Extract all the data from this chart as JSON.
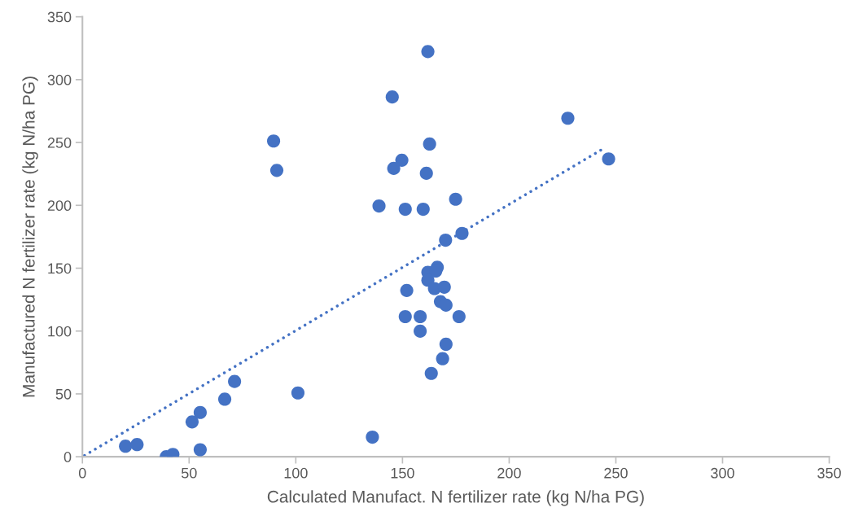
{
  "chart_data": {
    "type": "scatter",
    "xlabel": "Calculated Manufact. N fertilizer rate (kg N/ha PG)",
    "ylabel": "Manufactured N fertilizer rate (kg N/ha PG)",
    "xlim": [
      0,
      350
    ],
    "ylim": [
      0,
      350
    ],
    "xticks": [
      0,
      50,
      100,
      150,
      200,
      250,
      300,
      350
    ],
    "yticks": [
      0,
      50,
      100,
      150,
      200,
      250,
      300,
      350
    ],
    "grid": false,
    "legend": false,
    "series": [
      {
        "color": "#4472c4",
        "marker": "circle",
        "x": [
          20.2,
          25.6,
          39.3,
          42.4,
          55.2,
          51.4,
          55.2,
          66.7,
          71.3,
          101.0,
          89.6,
          91.1,
          135.9,
          161.9,
          145.2,
          162.7,
          149.7,
          145.9,
          161.2,
          174.9,
          139.0,
          151.3,
          159.7,
          177.9,
          170.2,
          166.3,
          161.9,
          165.6,
          161.9,
          165.0,
          169.6,
          152.0,
          167.8,
          170.4,
          151.3,
          158.3,
          176.5,
          158.3,
          170.4,
          168.8,
          163.5,
          227.5,
          246.6
        ],
        "values": [
          8.4,
          9.7,
          0,
          1.9,
          5.6,
          27.7,
          35.2,
          45.8,
          59.9,
          50.8,
          251.2,
          227.8,
          15.6,
          322.3,
          286.2,
          248.8,
          235.9,
          229.4,
          225.5,
          204.9,
          199.5,
          196.9,
          196.9,
          177.7,
          172.3,
          150.7,
          146.8,
          147.7,
          140.5,
          133.8,
          134.9,
          132.3,
          123.4,
          120.6,
          111.5,
          111.5,
          111.5,
          99.9,
          89.5,
          78.0,
          66.3,
          269.3,
          236.9
        ]
      },
      {
        "type": "line",
        "color": "#4472c4",
        "line_style": "dotted",
        "x": [
          1,
          245
        ],
        "values": [
          1,
          246
        ]
      }
    ]
  }
}
